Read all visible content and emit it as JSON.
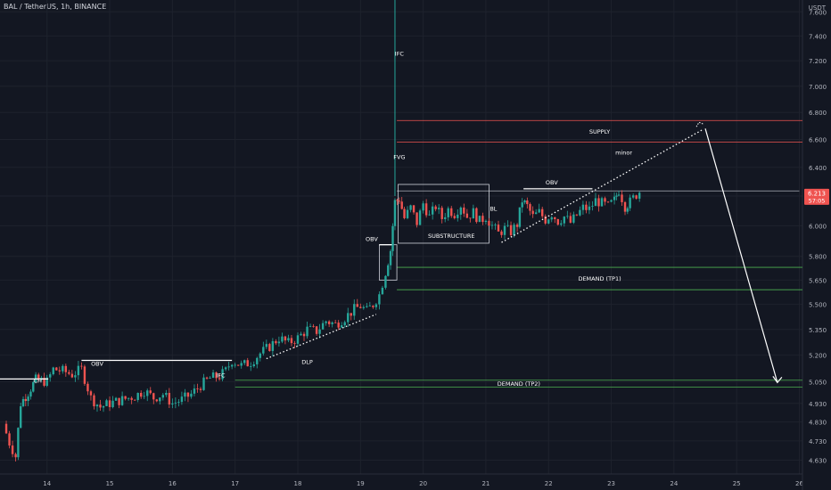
{
  "header": {
    "symbol_line": "BAL / TetherUS, 1h, BINANCE",
    "currency": "USDT"
  },
  "colors": {
    "background": "#131722",
    "grid": "#1e222d",
    "up": "#26a69a",
    "down": "#ef5350",
    "supply_line": "#ef5350",
    "demand_line": "#4caf50",
    "white": "#ffffff",
    "text": "#d1d4dc"
  },
  "chart_data": {
    "type": "candlestick",
    "symbol": "BAL / TetherUS",
    "interval": "1h",
    "exchange": "BINANCE",
    "currency": "USDT",
    "y_scale": "log",
    "ylim": [
      4.56,
      7.7
    ],
    "y_ticks": [
      "7.600",
      "7.400",
      "7.200",
      "7.000",
      "6.800",
      "6.600",
      "6.400",
      "6.200",
      "6.000",
      "5.800",
      "5.650",
      "5.500",
      "5.350",
      "5.200",
      "5.050",
      "4.930",
      "4.830",
      "4.730",
      "4.630"
    ],
    "x_ticks": [
      "14",
      "15",
      "16",
      "17",
      "18",
      "19",
      "20",
      "21",
      "22",
      "23",
      "24",
      "25",
      "26"
    ],
    "x_range": [
      13.25,
      26.05
    ],
    "last_price": {
      "value": "6.213",
      "countdown": "57:05"
    },
    "price_path": [
      [
        13.3,
        4.82
      ],
      [
        13.4,
        4.72
      ],
      [
        13.5,
        4.65
      ],
      [
        13.58,
        4.93
      ],
      [
        13.7,
        4.99
      ],
      [
        13.82,
        5.06
      ],
      [
        14.0,
        5.05
      ],
      [
        14.1,
        5.12
      ],
      [
        14.25,
        5.11
      ],
      [
        14.4,
        5.09
      ],
      [
        14.55,
        5.12
      ],
      [
        14.7,
        4.96
      ],
      [
        14.85,
        4.91
      ],
      [
        15.0,
        4.93
      ],
      [
        15.2,
        4.95
      ],
      [
        15.4,
        4.97
      ],
      [
        15.55,
        5.0
      ],
      [
        15.7,
        4.96
      ],
      [
        15.85,
        4.98
      ],
      [
        16.0,
        4.93
      ],
      [
        16.15,
        4.95
      ],
      [
        16.3,
        4.98
      ],
      [
        16.45,
        5.03
      ],
      [
        16.6,
        5.07
      ],
      [
        16.75,
        5.08
      ],
      [
        16.85,
        5.11
      ],
      [
        16.95,
        5.17
      ],
      [
        17.1,
        5.14
      ],
      [
        17.25,
        5.16
      ],
      [
        17.4,
        5.21
      ],
      [
        17.55,
        5.25
      ],
      [
        17.7,
        5.3
      ],
      [
        17.85,
        5.27
      ],
      [
        18.0,
        5.3
      ],
      [
        18.15,
        5.35
      ],
      [
        18.3,
        5.34
      ],
      [
        18.45,
        5.4
      ],
      [
        18.6,
        5.38
      ],
      [
        18.75,
        5.42
      ],
      [
        18.9,
        5.47
      ],
      [
        19.0,
        5.49
      ],
      [
        19.1,
        5.46
      ],
      [
        19.2,
        5.5
      ],
      [
        19.3,
        5.56
      ],
      [
        19.4,
        5.7
      ],
      [
        19.48,
        5.84
      ],
      [
        19.55,
        6.16
      ],
      [
        19.62,
        6.18
      ],
      [
        19.7,
        6.05
      ],
      [
        19.8,
        6.12
      ],
      [
        19.9,
        6.02
      ],
      [
        20.0,
        6.15
      ],
      [
        20.1,
        6.06
      ],
      [
        20.2,
        6.13
      ],
      [
        20.3,
        6.05
      ],
      [
        20.4,
        6.11
      ],
      [
        20.5,
        6.08
      ],
      [
        20.6,
        6.14
      ],
      [
        20.7,
        6.06
      ],
      [
        20.8,
        6.09
      ],
      [
        20.9,
        6.03
      ],
      [
        21.0,
        6.06
      ],
      [
        21.1,
        6.0
      ],
      [
        21.2,
        5.95
      ],
      [
        21.3,
        5.98
      ],
      [
        21.4,
        5.96
      ],
      [
        21.5,
        6.01
      ],
      [
        21.58,
        6.17
      ],
      [
        21.66,
        6.13
      ],
      [
        21.75,
        6.06
      ],
      [
        21.85,
        6.09
      ],
      [
        21.95,
        6.04
      ],
      [
        22.05,
        6.08
      ],
      [
        22.15,
        6.03
      ],
      [
        22.25,
        6.06
      ],
      [
        22.35,
        6.02
      ],
      [
        22.45,
        6.07
      ],
      [
        22.55,
        6.12
      ],
      [
        22.65,
        6.11
      ],
      [
        22.75,
        6.17
      ],
      [
        22.85,
        6.15
      ],
      [
        22.95,
        6.13
      ],
      [
        23.05,
        6.17
      ],
      [
        23.12,
        6.24
      ],
      [
        23.22,
        6.13
      ],
      [
        23.3,
        6.16
      ],
      [
        23.4,
        6.21
      ],
      [
        23.45,
        6.23
      ]
    ],
    "zones": [
      {
        "label": "SUPPLY",
        "top": 6.74,
        "bottom": 6.58,
        "x_start": 19.58,
        "color": "#ef5350"
      },
      {
        "label": "DEMAND (TP1)",
        "top": 5.73,
        "bottom": 5.59,
        "x_start": 19.58,
        "color": "#4caf50"
      },
      {
        "label": "DEMAND (TP2)",
        "top": 5.058,
        "bottom": 5.02,
        "x_start": 17.0,
        "color": "#4caf50"
      }
    ],
    "horizontal_levels": [
      {
        "label": "",
        "price": 6.235,
        "x_start": 19.58,
        "x_end": 26.0
      }
    ],
    "annotations": [
      {
        "text": "CH",
        "x": 13.85,
        "price": 5.045
      },
      {
        "text": "OBV",
        "x": 14.8,
        "price": 5.14
      },
      {
        "text": "IFC",
        "x": 16.77,
        "price": 5.075
      },
      {
        "text": "DLP",
        "x": 18.15,
        "price": 5.15
      },
      {
        "text": "OBV",
        "x": 19.18,
        "price": 5.9
      },
      {
        "text": "IFC",
        "x": 19.62,
        "price": 7.24
      },
      {
        "text": "FVG",
        "x": 19.62,
        "price": 6.46
      },
      {
        "text": "SUBSTRUCTURE",
        "x": 20.45,
        "price": 5.92
      },
      {
        "text": "OBV",
        "x": 22.05,
        "price": 6.28
      },
      {
        "text": "minor",
        "x": 23.2,
        "price": 6.49
      },
      {
        "text": "BL",
        "x": 21.12,
        "price": 6.1
      }
    ],
    "white_lines": [
      {
        "label": "CH",
        "x1": 13.25,
        "x2": 14.02,
        "price": 5.065
      },
      {
        "label": "OBV",
        "x1": 14.55,
        "x2": 16.95,
        "price": 5.17
      },
      {
        "label": "OBV",
        "x1": 21.6,
        "x2": 22.7,
        "price": 6.25
      },
      {
        "label": "OBV",
        "x1": 19.3,
        "x2": 19.5,
        "price": 5.875
      }
    ],
    "boxes": [
      {
        "label": "SUBSTRUCTURE",
        "x1": 19.6,
        "x2": 21.05,
        "top": 6.28,
        "bottom": 5.885
      },
      {
        "label": "OBV",
        "x1": 19.3,
        "x2": 19.58,
        "top": 5.875,
        "bottom": 5.65
      }
    ],
    "trendlines": [
      {
        "label": "DLP",
        "x1": 17.5,
        "p1": 5.18,
        "x2": 19.25,
        "p2": 5.44,
        "style": "dotted"
      },
      {
        "label": "minor",
        "x1": 21.25,
        "p1": 5.89,
        "x2": 24.45,
        "p2": 6.67,
        "style": "dotted"
      }
    ],
    "arrow": {
      "x1": 24.5,
      "p1": 6.68,
      "x2": 25.65,
      "p2": 5.045
    },
    "ifc_spike": {
      "x": 19.55,
      "high": 7.75
    }
  }
}
